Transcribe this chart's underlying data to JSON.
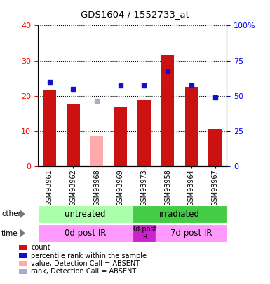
{
  "title": "GDS1604 / 1552733_at",
  "samples": [
    "GSM93961",
    "GSM93962",
    "GSM93968",
    "GSM93969",
    "GSM93973",
    "GSM93958",
    "GSM93964",
    "GSM93967"
  ],
  "bar_values": [
    21.5,
    17.5,
    null,
    17.0,
    19.0,
    31.5,
    22.5,
    10.5
  ],
  "bar_absent_values": [
    null,
    null,
    8.5,
    null,
    null,
    null,
    null,
    null
  ],
  "rank_values": [
    60.0,
    55.0,
    null,
    57.5,
    57.5,
    67.5,
    57.5,
    48.75
  ],
  "rank_absent_values": [
    null,
    null,
    46.25,
    null,
    null,
    null,
    null,
    null
  ],
  "bar_color": "#cc1111",
  "bar_absent_color": "#ffaaaa",
  "rank_color": "#1111cc",
  "rank_absent_color": "#aaaacc",
  "ylim_left": [
    0,
    40
  ],
  "ylim_right": [
    0,
    100
  ],
  "yticks_left": [
    0,
    10,
    20,
    30,
    40
  ],
  "yticks_right": [
    0,
    25,
    50,
    75,
    100
  ],
  "yticklabels_right": [
    "0",
    "25",
    "50",
    "75",
    "100%"
  ],
  "other_labels": [
    {
      "text": "untreated",
      "color": "#aaffaa",
      "start": 0,
      "end": 4
    },
    {
      "text": "irradiated",
      "color": "#44cc44",
      "start": 4,
      "end": 8
    }
  ],
  "time_labels": [
    {
      "text": "0d post IR",
      "color": "#ff99ff",
      "start": 0,
      "end": 4
    },
    {
      "text": "3d post\nIR",
      "color": "#cc22cc",
      "start": 4,
      "end": 5
    },
    {
      "text": "7d post IR",
      "color": "#ff99ff",
      "start": 5,
      "end": 8
    }
  ],
  "legend": [
    {
      "label": "count",
      "color": "#cc1111"
    },
    {
      "label": "percentile rank within the sample",
      "color": "#1111cc"
    },
    {
      "label": "value, Detection Call = ABSENT",
      "color": "#ffaaaa"
    },
    {
      "label": "rank, Detection Call = ABSENT",
      "color": "#aaaacc"
    }
  ],
  "bg_color": "#d8d8d8",
  "plot_bg": "#ffffff"
}
